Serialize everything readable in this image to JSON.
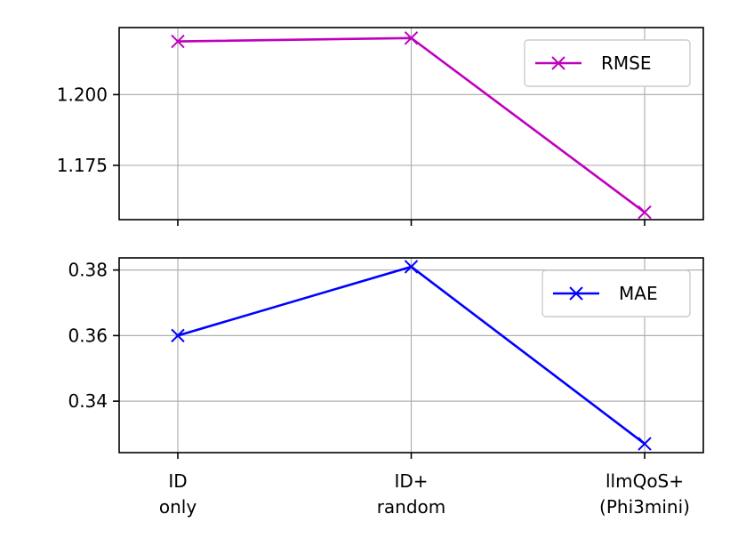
{
  "chart_data": [
    {
      "type": "line",
      "categories": [
        "ID\nonly",
        "ID+\nrandom",
        "llmQoS+\n(Phi3mini)"
      ],
      "series": [
        {
          "name": "RMSE",
          "values": [
            1.2188,
            1.22,
            1.1584
          ]
        }
      ],
      "ylim": [
        1.1558,
        1.2237
      ],
      "yticks": [
        "1.175",
        "1.200"
      ],
      "ytick_values": [
        1.175,
        1.2
      ],
      "color": "#bf00bf",
      "marker": "x",
      "grid": true,
      "legend": "upper right",
      "show_xticklabels": false
    },
    {
      "type": "line",
      "categories": [
        "ID\nonly",
        "ID+\nrandom",
        "llmQoS+\n(Phi3mini)"
      ],
      "series": [
        {
          "name": "MAE",
          "values": [
            0.36,
            0.381,
            0.327
          ]
        }
      ],
      "ylim": [
        0.3243,
        0.3837
      ],
      "yticks": [
        "0.34",
        "0.36",
        "0.38"
      ],
      "ytick_values": [
        0.34,
        0.36,
        0.38
      ],
      "color": "#0000ff",
      "marker": "x",
      "grid": true,
      "legend": "upper right",
      "show_xticklabels": true
    }
  ]
}
